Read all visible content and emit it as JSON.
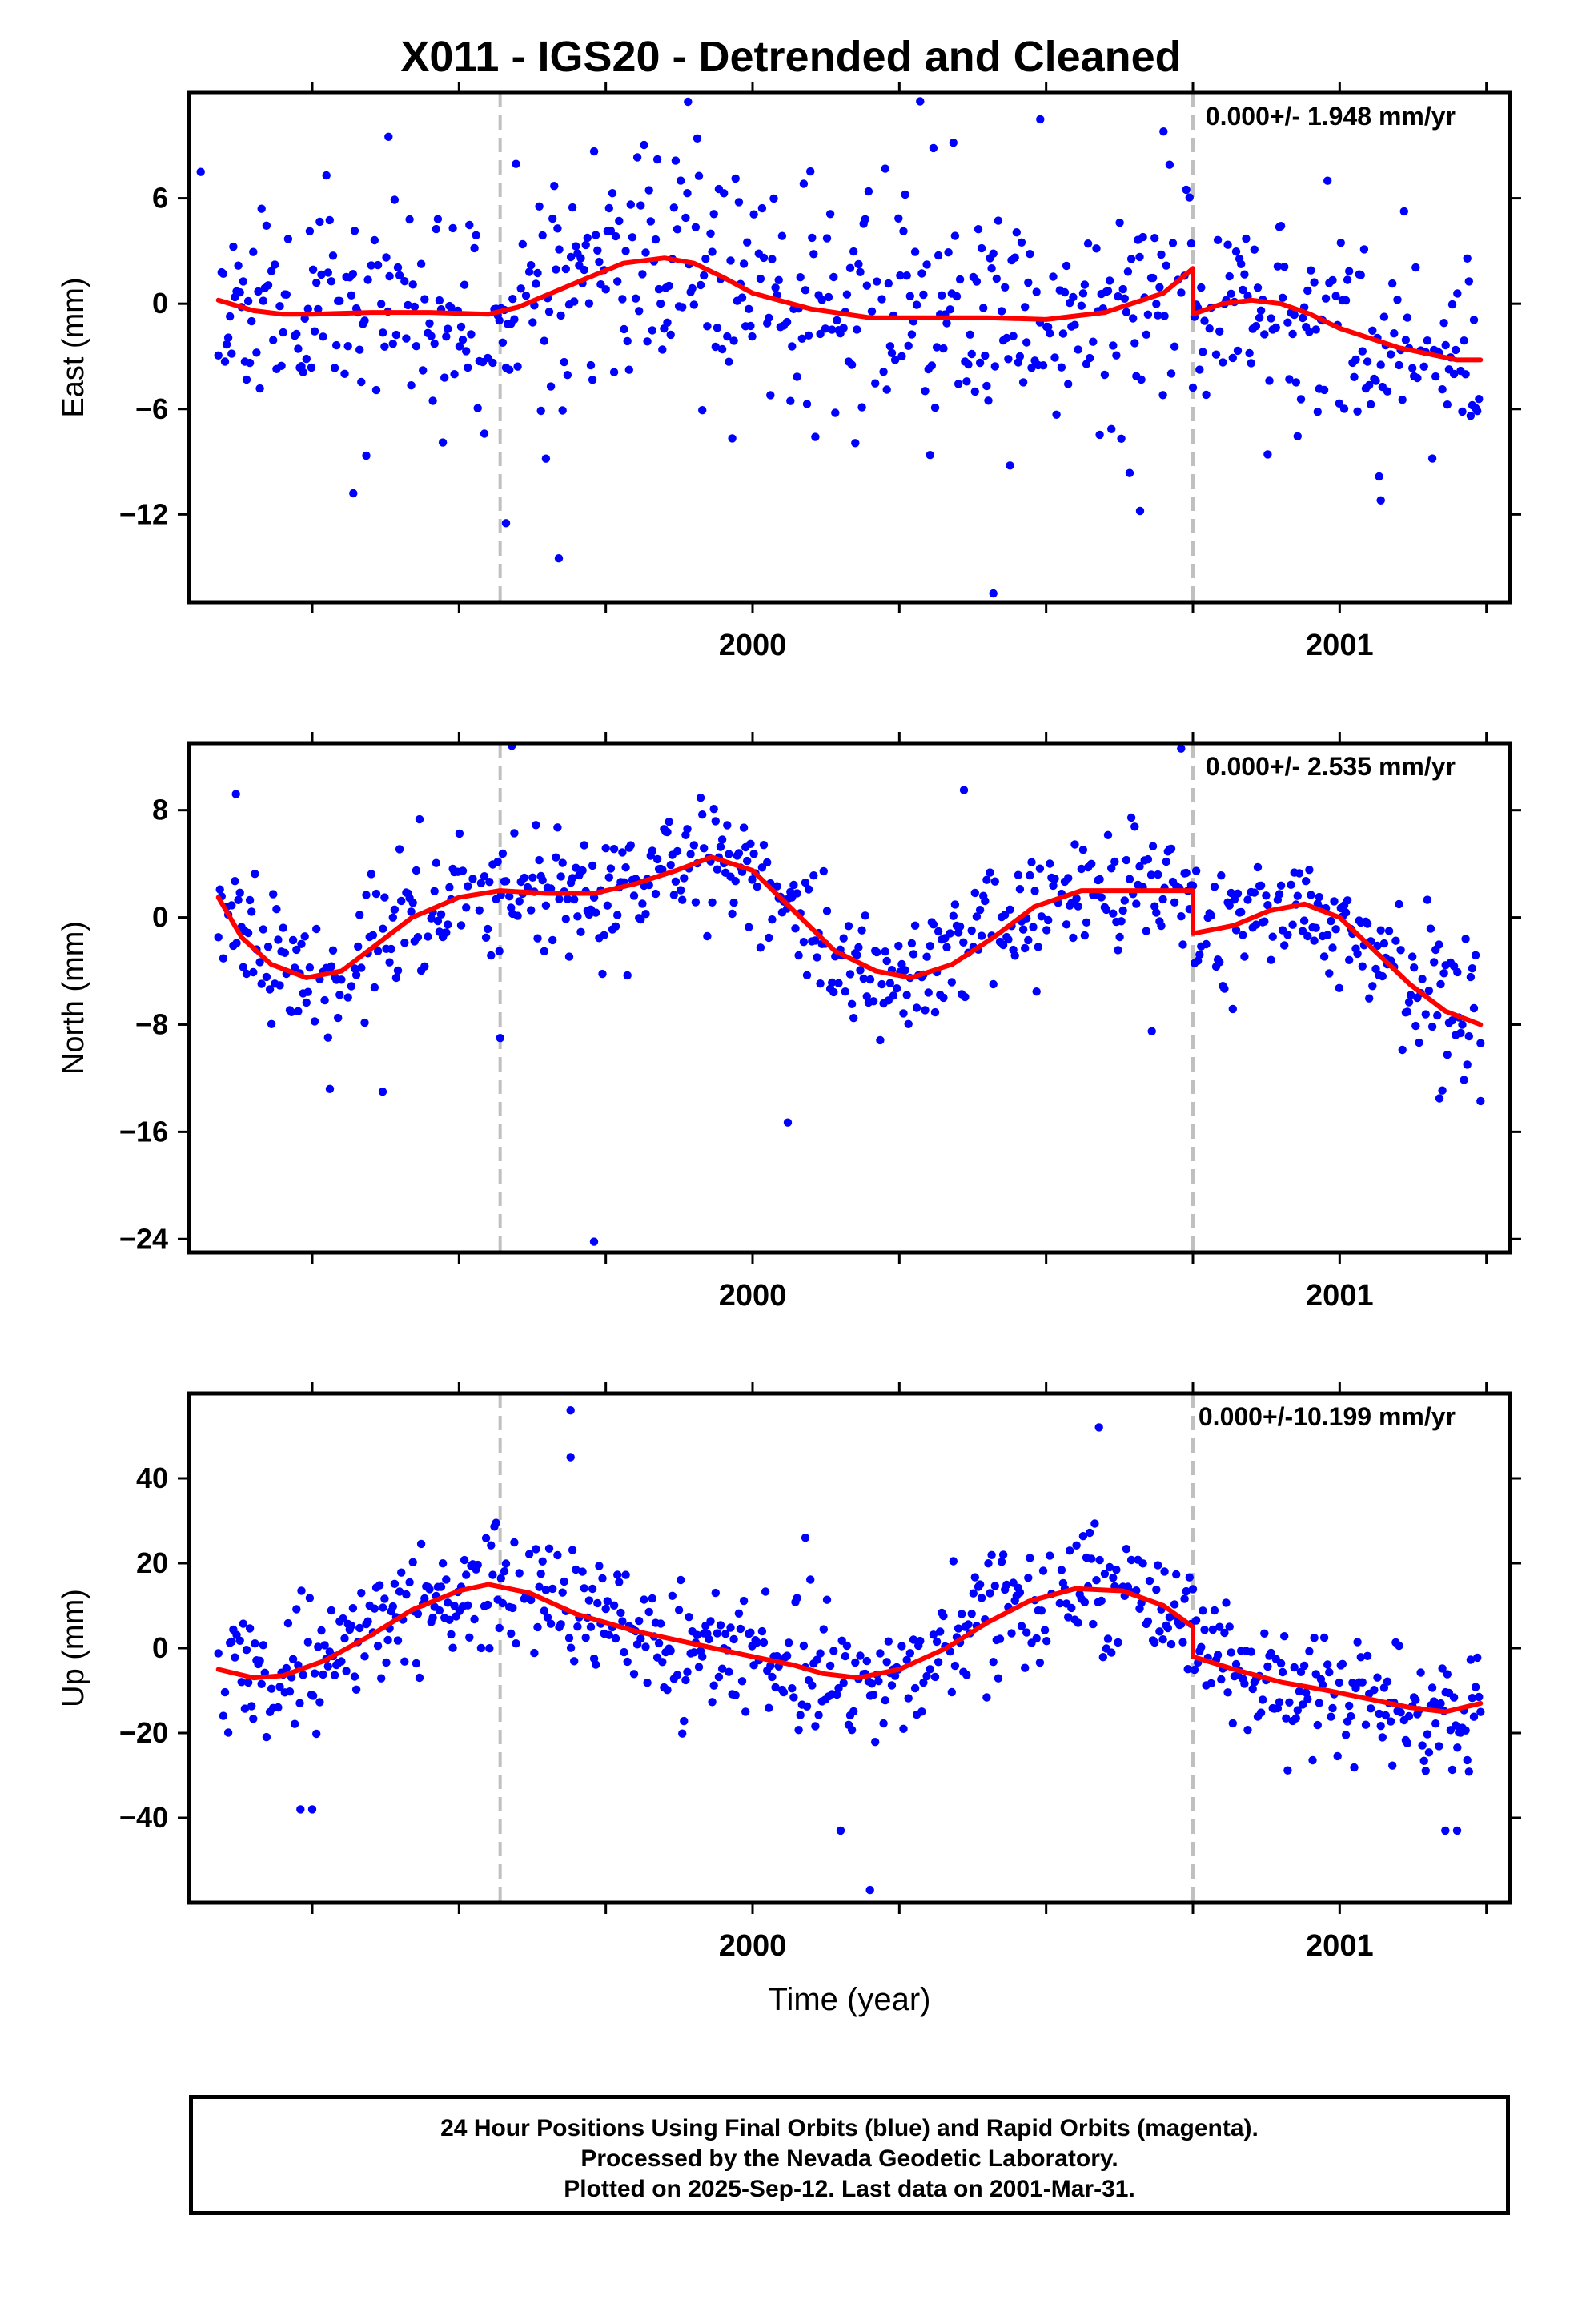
{
  "title": "X011 - IGS20 - Detrended and Cleaned",
  "footer": {
    "line1": "24 Hour Positions Using Final Orbits (blue) and Rapid Orbits (magenta).",
    "line2": "Processed by the Nevada Geodetic Laboratory.",
    "line3": "Plotted on 2025-Sep-12. Last data on 2001-Mar-31."
  },
  "colors": {
    "points": "#0000ff",
    "model": "#ff0000",
    "event_line": "#c0c0c0"
  },
  "chart_data": [
    {
      "type": "scatter",
      "panel": "east",
      "ylabel": "East (mm)",
      "xlabel": "",
      "rate_label": "0.000+/- 1.948 mm/yr",
      "xlim": [
        1999.04,
        2001.29
      ],
      "ylim": [
        -17,
        12
      ],
      "yticks": [
        6,
        0,
        -6,
        -12
      ],
      "xticks_labeled": [
        2000,
        2001
      ],
      "xticks_minor": [
        1999.25,
        1999.5,
        1999.75,
        2000.25,
        2000.5,
        2000.75,
        2001.25
      ],
      "events": [
        1999.57,
        2000.75
      ],
      "scatter_seed": 11,
      "scatter_sigma": 3.3,
      "scatter_outliers": [
        [
          1999.38,
          9.5
        ],
        [
          1999.06,
          7.5
        ],
        [
          1999.58,
          -12.5
        ],
        [
          1999.67,
          -14.5
        ],
        [
          2000.41,
          -16.5
        ],
        [
          2000.49,
          10.5
        ],
        [
          2000.7,
          9.8
        ],
        [
          1999.89,
          11.5
        ],
        [
          2000.66,
          -11.8
        ],
        [
          2001.07,
          -11.2
        ],
        [
          1999.32,
          -10.8
        ]
      ],
      "model": {
        "x": [
          1999.09,
          1999.15,
          1999.2,
          1999.25,
          1999.35,
          1999.45,
          1999.55,
          1999.6,
          1999.7,
          1999.78,
          1999.85,
          1999.9,
          1999.95,
          2000.0,
          2000.1,
          2000.2,
          2000.3,
          2000.4,
          2000.5,
          2000.6,
          2000.7,
          2000.75,
          2000.75,
          2000.8,
          2000.85,
          2000.9,
          2000.95,
          2001.0,
          2001.1,
          2001.2,
          2001.24
        ],
        "y": [
          0.2,
          -0.4,
          -0.6,
          -0.6,
          -0.5,
          -0.5,
          -0.6,
          -0.2,
          1.2,
          2.3,
          2.6,
          2.3,
          1.5,
          0.6,
          -0.3,
          -0.8,
          -0.8,
          -0.8,
          -0.9,
          -0.5,
          0.6,
          2.0,
          -0.6,
          0.0,
          0.2,
          0.0,
          -0.6,
          -1.4,
          -2.5,
          -3.2,
          -3.2
        ]
      }
    },
    {
      "type": "scatter",
      "panel": "north",
      "ylabel": "North (mm)",
      "xlabel": "",
      "rate_label": "0.000+/- 2.535 mm/yr",
      "xlim": [
        1999.04,
        2001.29
      ],
      "ylim": [
        -25,
        13
      ],
      "yticks": [
        8,
        0,
        -8,
        -16,
        -24
      ],
      "xticks_labeled": [
        2000,
        2001
      ],
      "xticks_minor": [
        1999.25,
        1999.5,
        1999.75,
        2000.25,
        2000.5,
        2000.75,
        2001.25
      ],
      "events": [
        1999.57,
        2000.75
      ],
      "scatter_seed": 23,
      "scatter_sigma": 2.3,
      "scatter_outliers": [
        [
          1999.59,
          12.8
        ],
        [
          1999.73,
          -24.2
        ],
        [
          2000.06,
          -15.3
        ],
        [
          2000.73,
          12.6
        ],
        [
          2000.36,
          9.5
        ],
        [
          1999.12,
          9.2
        ],
        [
          1999.28,
          -12.8
        ],
        [
          1999.37,
          -13.0
        ],
        [
          2001.24,
          -13.7
        ],
        [
          2001.17,
          -13.5
        ],
        [
          1999.57,
          -9.0
        ],
        [
          2000.68,
          -8.5
        ]
      ],
      "model": {
        "x": [
          1999.09,
          1999.13,
          1999.18,
          1999.24,
          1999.3,
          1999.36,
          1999.42,
          1999.5,
          1999.57,
          1999.65,
          1999.73,
          1999.8,
          1999.87,
          1999.93,
          2000.0,
          2000.07,
          2000.14,
          2000.21,
          2000.27,
          2000.34,
          2000.41,
          2000.48,
          2000.56,
          2000.64,
          2000.75,
          2000.75,
          2000.82,
          2000.88,
          2000.94,
          2001.0,
          2001.06,
          2001.12,
          2001.18,
          2001.24
        ],
        "y": [
          1.5,
          -1.5,
          -3.5,
          -4.5,
          -4.0,
          -2.0,
          0.0,
          1.5,
          2.0,
          1.8,
          1.8,
          2.5,
          3.5,
          4.5,
          3.5,
          0.5,
          -2.5,
          -4.0,
          -4.5,
          -3.5,
          -1.5,
          0.8,
          2.0,
          2.0,
          2.0,
          -1.2,
          -0.6,
          0.5,
          1.0,
          0.0,
          -2.5,
          -5.0,
          -7.0,
          -8.0
        ]
      }
    },
    {
      "type": "scatter",
      "panel": "up",
      "ylabel": "Up (mm)",
      "xlabel": "Time (year)",
      "rate_label": "0.000+/-10.199 mm/yr",
      "xlim": [
        1999.04,
        2001.29
      ],
      "ylim": [
        -60,
        60
      ],
      "yticks": [
        40,
        20,
        0,
        -20,
        -40
      ],
      "xticks_labeled": [
        2000,
        2001
      ],
      "xticks_minor": [
        1999.25,
        1999.5,
        1999.75,
        2000.25,
        2000.5,
        2000.75,
        2001.25
      ],
      "events": [
        1999.57,
        2000.75
      ],
      "scatter_seed": 37,
      "scatter_sigma": 7.0,
      "scatter_outliers": [
        [
          1999.69,
          56
        ],
        [
          1999.69,
          45
        ],
        [
          2000.59,
          52
        ],
        [
          2000.2,
          -57
        ],
        [
          2000.15,
          -43
        ],
        [
          1999.23,
          -38
        ],
        [
          1999.25,
          -38
        ],
        [
          2001.2,
          -43
        ],
        [
          2001.18,
          -43
        ],
        [
          2000.09,
          26
        ]
      ],
      "model": {
        "x": [
          1999.09,
          1999.15,
          1999.2,
          1999.27,
          1999.35,
          1999.42,
          1999.5,
          1999.55,
          1999.62,
          1999.7,
          1999.8,
          1999.9,
          2000.0,
          2000.07,
          2000.12,
          2000.18,
          2000.25,
          2000.33,
          2000.4,
          2000.47,
          2000.55,
          2000.63,
          2000.7,
          2000.75,
          2000.75,
          2000.82,
          2000.9,
          2000.98,
          2001.05,
          2001.12,
          2001.18,
          2001.24
        ],
        "y": [
          -5,
          -7,
          -6.5,
          -3,
          3,
          9,
          13.5,
          15,
          13,
          8,
          4,
          1,
          -2,
          -4,
          -6,
          -7,
          -5,
          0,
          6,
          11,
          14,
          13.5,
          10,
          5,
          -2,
          -5,
          -8,
          -10,
          -12,
          -14,
          -15,
          -13
        ]
      }
    }
  ]
}
